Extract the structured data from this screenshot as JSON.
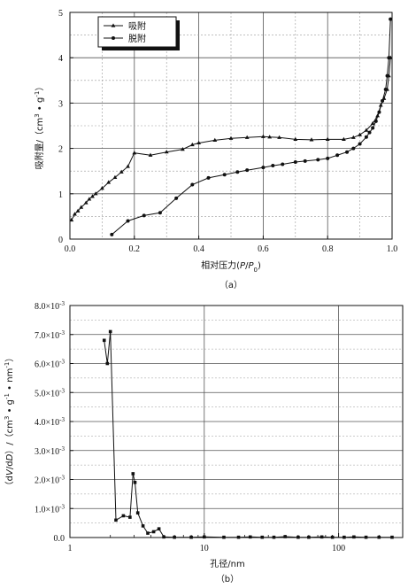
{
  "chart_data": [
    {
      "type": "line",
      "panel_label": "（a）",
      "xlabel": "相对压力(P/P0)",
      "ylabel": "吸附量/（cm³·g⁻¹）",
      "xlim": [
        0,
        1.0
      ],
      "ylim": [
        0,
        5
      ],
      "x_ticks": [
        "0.0",
        "0.2",
        "0.4",
        "0.6",
        "0.8",
        "1.0"
      ],
      "y_ticks": [
        "0",
        "1",
        "2",
        "3",
        "4",
        "5"
      ],
      "grid": true,
      "legend_position": "top-left",
      "series": [
        {
          "name": "吸附",
          "marker": "triangle",
          "x": [
            0.005,
            0.015,
            0.025,
            0.035,
            0.05,
            0.06,
            0.07,
            0.08,
            0.1,
            0.12,
            0.14,
            0.16,
            0.18,
            0.2,
            0.25,
            0.3,
            0.35,
            0.38,
            0.4,
            0.45,
            0.5,
            0.55,
            0.6,
            0.62,
            0.65,
            0.7,
            0.75,
            0.8,
            0.85,
            0.88,
            0.9,
            0.92,
            0.94,
            0.955,
            0.965,
            0.975,
            0.985,
            0.99,
            0.995
          ],
          "y": [
            0.42,
            0.55,
            0.62,
            0.7,
            0.8,
            0.88,
            0.94,
            1.0,
            1.12,
            1.25,
            1.36,
            1.48,
            1.6,
            1.9,
            1.85,
            1.92,
            1.98,
            2.08,
            2.12,
            2.18,
            2.22,
            2.24,
            2.26,
            2.25,
            2.24,
            2.2,
            2.19,
            2.2,
            2.2,
            2.24,
            2.3,
            2.4,
            2.55,
            2.72,
            2.95,
            3.1,
            3.3,
            3.6,
            4.0
          ]
        },
        {
          "name": "脱附",
          "marker": "circle",
          "x": [
            0.13,
            0.18,
            0.23,
            0.28,
            0.33,
            0.38,
            0.43,
            0.48,
            0.52,
            0.55,
            0.6,
            0.63,
            0.66,
            0.7,
            0.73,
            0.77,
            0.8,
            0.83,
            0.86,
            0.88,
            0.9,
            0.92,
            0.93,
            0.94,
            0.95,
            0.96,
            0.97,
            0.98,
            0.985,
            0.99,
            0.995
          ],
          "y": [
            0.1,
            0.4,
            0.52,
            0.58,
            0.9,
            1.2,
            1.35,
            1.42,
            1.48,
            1.52,
            1.58,
            1.62,
            1.65,
            1.7,
            1.72,
            1.75,
            1.78,
            1.85,
            1.92,
            2.0,
            2.1,
            2.25,
            2.35,
            2.45,
            2.6,
            2.8,
            3.05,
            3.3,
            3.6,
            4.0,
            4.85
          ]
        }
      ]
    },
    {
      "type": "line",
      "panel_label": "（b）",
      "xlabel": "孔径/nm",
      "ylabel": "（dV/dD）/（cm³·g⁻¹·nm⁻¹）",
      "x_scale": "log",
      "xlim": [
        1,
        300
      ],
      "ylim": [
        0,
        0.008
      ],
      "x_ticks": [
        "1",
        "10",
        "100"
      ],
      "y_ticks": [
        "0.0",
        "1.0×10⁻³",
        "2.0×10⁻³",
        "3.0×10⁻³",
        "4.0×10⁻³",
        "5.0×10⁻³",
        "6.0×10⁻³",
        "7.0×10⁻³",
        "8.0×10⁻³"
      ],
      "grid": true,
      "series": [
        {
          "marker": "square",
          "x": [
            1.8,
            1.9,
            2.0,
            2.2,
            2.5,
            2.8,
            2.95,
            3.05,
            3.2,
            3.5,
            3.8,
            4.2,
            4.6,
            5.0,
            6,
            8,
            10,
            14,
            18,
            22,
            27,
            33,
            40,
            50,
            60,
            75,
            90,
            110,
            130,
            160,
            200,
            250
          ],
          "y": [
            0.0068,
            0.006,
            0.0071,
            0.0006,
            0.00075,
            0.0007,
            0.0022,
            0.0019,
            0.00085,
            0.0004,
            0.00015,
            0.0002,
            0.0003,
            2e-05,
            1e-05,
            1e-05,
            2e-05,
            1e-05,
            1e-05,
            2e-05,
            1e-05,
            1e-05,
            3e-05,
            1e-05,
            1e-05,
            2e-05,
            1e-05,
            1e-05,
            2e-05,
            1e-05,
            1e-05,
            1e-05
          ]
        }
      ]
    }
  ]
}
